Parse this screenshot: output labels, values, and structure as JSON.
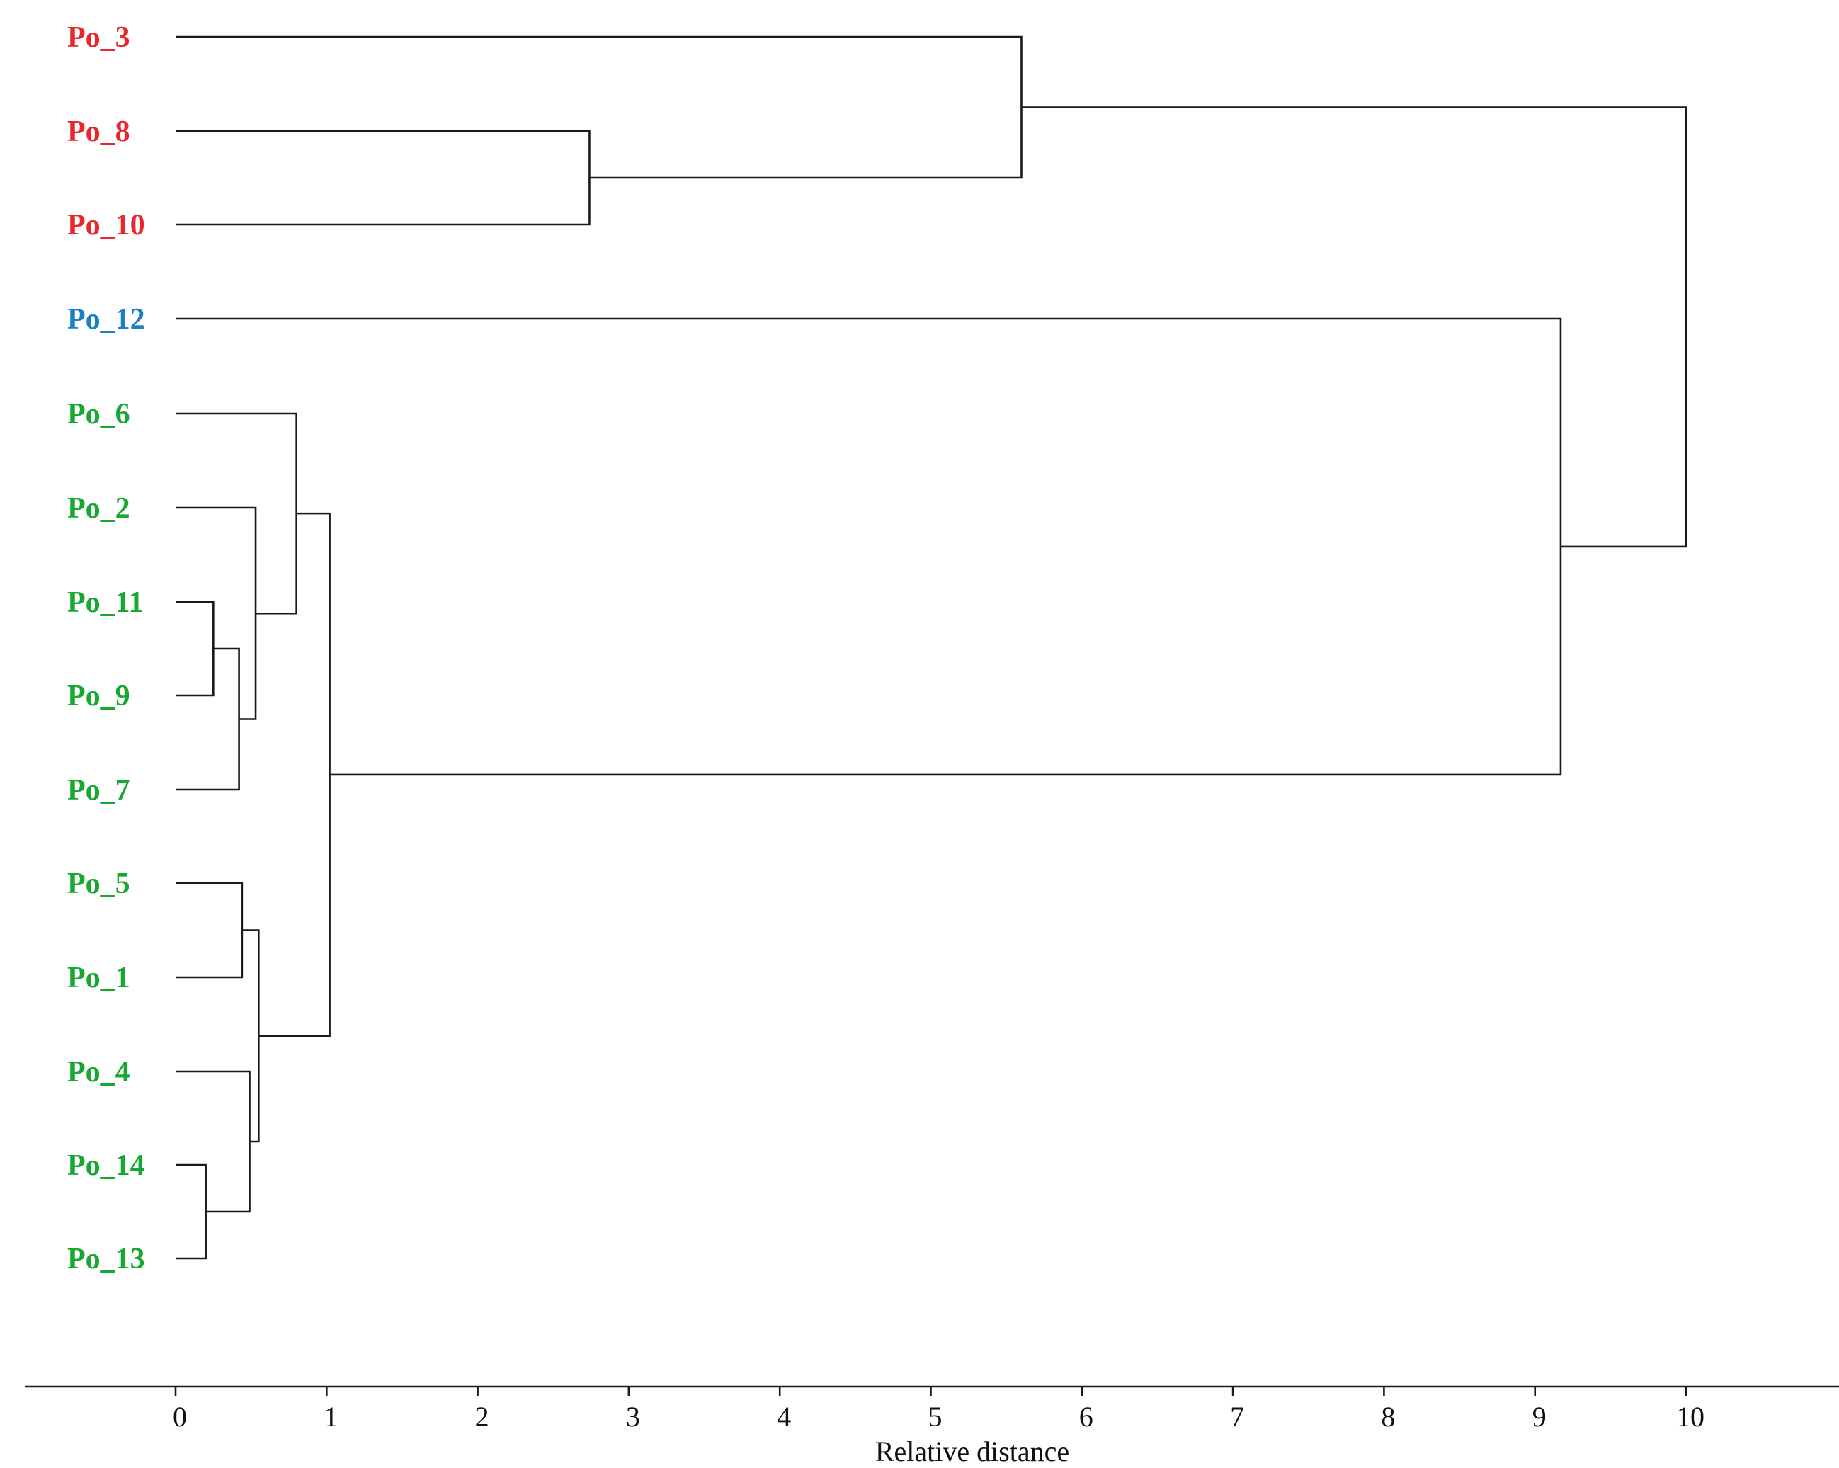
{
  "chart_data": {
    "type": "dendrogram",
    "xlabel": "Relative distance",
    "xlim": [
      0,
      10
    ],
    "x_ticks": [
      "0",
      "1",
      "2",
      "3",
      "4",
      "5",
      "6",
      "7",
      "8",
      "9",
      "10"
    ],
    "grid": false,
    "colors": {
      "red": "#e8262b",
      "blue": "#1a7fc4",
      "green": "#17a832",
      "link": "#1a1a1a"
    },
    "leaves": [
      {
        "id": "Po_3",
        "label": "Po_3",
        "color": "#e8262b"
      },
      {
        "id": "Po_8",
        "label": "Po_8",
        "color": "#e8262b"
      },
      {
        "id": "Po_10",
        "label": "Po_10",
        "color": "#e8262b"
      },
      {
        "id": "Po_12",
        "label": "Po_12",
        "color": "#1a7fc4"
      },
      {
        "id": "Po_6",
        "label": "Po_6",
        "color": "#17a832"
      },
      {
        "id": "Po_2",
        "label": "Po_2",
        "color": "#17a832"
      },
      {
        "id": "Po_11",
        "label": "Po_11",
        "color": "#17a832"
      },
      {
        "id": "Po_9",
        "label": "Po_9",
        "color": "#17a832"
      },
      {
        "id": "Po_7",
        "label": "Po_7",
        "color": "#17a832"
      },
      {
        "id": "Po_5",
        "label": "Po_5",
        "color": "#17a832"
      },
      {
        "id": "Po_1",
        "label": "Po_1",
        "color": "#17a832"
      },
      {
        "id": "Po_4",
        "label": "Po_4",
        "color": "#17a832"
      },
      {
        "id": "Po_14",
        "label": "Po_14",
        "color": "#17a832"
      },
      {
        "id": "Po_13",
        "label": "Po_13",
        "color": "#17a832"
      }
    ],
    "merges": [
      {
        "id": "m1",
        "children": [
          "Po_11",
          "Po_9"
        ],
        "distance": 0.25
      },
      {
        "id": "m2",
        "children": [
          "Po_14",
          "Po_13"
        ],
        "distance": 0.2
      },
      {
        "id": "m3",
        "children": [
          "m1",
          "Po_7"
        ],
        "distance": 0.42
      },
      {
        "id": "m4",
        "children": [
          "Po_5",
          "Po_1"
        ],
        "distance": 0.44
      },
      {
        "id": "m5",
        "children": [
          "Po_4",
          "m2"
        ],
        "distance": 0.49
      },
      {
        "id": "m6",
        "children": [
          "Po_2",
          "m3"
        ],
        "distance": 0.53
      },
      {
        "id": "m7",
        "children": [
          "m4",
          "m5"
        ],
        "distance": 0.55
      },
      {
        "id": "m8",
        "children": [
          "Po_6",
          "m6"
        ],
        "distance": 0.8
      },
      {
        "id": "m9",
        "children": [
          "m8",
          "m7"
        ],
        "distance": 1.02
      },
      {
        "id": "m10",
        "children": [
          "Po_8",
          "Po_10"
        ],
        "distance": 2.74
      },
      {
        "id": "m11",
        "children": [
          "Po_3",
          "m10"
        ],
        "distance": 5.6
      },
      {
        "id": "m12",
        "children": [
          "Po_12",
          "m9"
        ],
        "distance": 9.17
      },
      {
        "id": "m13",
        "children": [
          "m11",
          "m12"
        ],
        "distance": 10.0
      }
    ]
  }
}
